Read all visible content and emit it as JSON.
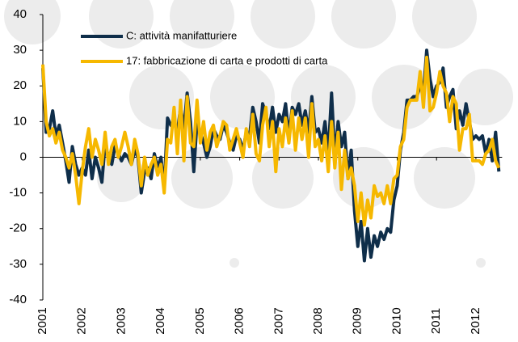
{
  "chart_data": {
    "type": "line",
    "categories": [
      "2001",
      null,
      null,
      null,
      null,
      null,
      null,
      null,
      null,
      null,
      null,
      null,
      "2002",
      null,
      null,
      null,
      null,
      null,
      null,
      null,
      null,
      null,
      null,
      null,
      "2003",
      null,
      null,
      null,
      null,
      null,
      null,
      null,
      null,
      null,
      null,
      null,
      "2004",
      null,
      null,
      null,
      null,
      null,
      null,
      null,
      null,
      null,
      null,
      null,
      "2005",
      null,
      null,
      null,
      null,
      null,
      null,
      null,
      null,
      null,
      null,
      null,
      "2006",
      null,
      null,
      null,
      null,
      null,
      null,
      null,
      null,
      null,
      null,
      null,
      "2007",
      null,
      null,
      null,
      null,
      null,
      null,
      null,
      null,
      null,
      null,
      null,
      "2008",
      null,
      null,
      null,
      null,
      null,
      null,
      null,
      null,
      null,
      null,
      null,
      "2009",
      null,
      null,
      null,
      null,
      null,
      null,
      null,
      null,
      null,
      null,
      null,
      "2010",
      null,
      null,
      null,
      null,
      null,
      null,
      null,
      null,
      null,
      null,
      null,
      "2011",
      null,
      null,
      null,
      null,
      null,
      null,
      null,
      null,
      null,
      null,
      null,
      "2012",
      null,
      null,
      null,
      null,
      null,
      null,
      null
    ],
    "series": [
      {
        "name": "C: attività manifatturiere",
        "color": "#0f2e4a",
        "values": [
          25,
          7,
          8,
          13,
          6,
          9,
          4,
          -1,
          -7,
          3,
          -2,
          -5,
          -3,
          -5,
          2,
          -6,
          0,
          -3,
          -7,
          4,
          0,
          -2,
          3,
          1,
          -1,
          1,
          0,
          -2,
          2,
          0,
          -10,
          -4,
          -3,
          -6,
          1,
          -3,
          0,
          -9,
          11,
          9,
          10,
          7,
          14,
          8,
          18,
          10,
          -4,
          10,
          7,
          4,
          0,
          3,
          8,
          6,
          5,
          9,
          7,
          4,
          2,
          6,
          5,
          2,
          7,
          6,
          14,
          10,
          4,
          15,
          12,
          8,
          14,
          7,
          12,
          10,
          15,
          6,
          14,
          12,
          15,
          9,
          13,
          7,
          17,
          7,
          8,
          4,
          10,
          1,
          18,
          0,
          10,
          3,
          7,
          -6,
          2,
          -15,
          -25,
          -18,
          -29,
          -20,
          -28,
          -22,
          -25,
          -21,
          -23,
          -20,
          -21,
          -12,
          -8,
          2,
          7,
          16,
          16,
          17,
          17,
          20,
          18,
          30,
          22,
          17,
          20,
          21,
          25,
          14,
          17,
          19,
          8,
          13,
          9,
          15,
          10,
          5,
          6,
          5,
          6,
          1,
          5,
          -1,
          7,
          -4
        ]
      },
      {
        "name": "17: fabbricazione di carta e prodotti di carta",
        "color": "#f6b800",
        "values": [
          26,
          10,
          6,
          8,
          4,
          7,
          2,
          0,
          -3,
          1,
          -5,
          -13,
          -4,
          3,
          8,
          0,
          5,
          2,
          -2,
          7,
          -2,
          3,
          5,
          0,
          3,
          7,
          3,
          -2,
          5,
          1,
          -8,
          0,
          -5,
          -2,
          0,
          -5,
          -2,
          -10,
          5,
          4,
          14,
          1,
          16,
          -1,
          17,
          4,
          3,
          16,
          4,
          10,
          2,
          7,
          9,
          3,
          6,
          10,
          9,
          2,
          5,
          8,
          4,
          0,
          8,
          3,
          12,
          1,
          -1,
          9,
          14,
          3,
          10,
          -4,
          8,
          3,
          11,
          4,
          13,
          2,
          11,
          5,
          11,
          0,
          15,
          3,
          5,
          -1,
          6,
          -4,
          10,
          -3,
          7,
          -9,
          2,
          -6,
          -3,
          -8,
          -18,
          -10,
          -19,
          -12,
          -17,
          -8,
          -11,
          -10,
          -13,
          -8,
          -13,
          -6,
          -5,
          3,
          5,
          14,
          16,
          16,
          16,
          24,
          14,
          28,
          13,
          14,
          18,
          24,
          20,
          18,
          10,
          17,
          15,
          2,
          8,
          8,
          12,
          -1,
          -1,
          -1,
          -2,
          1,
          2,
          5,
          -1,
          -3
        ]
      }
    ],
    "ylim": [
      -40,
      40
    ],
    "yticks": [
      -40,
      -30,
      -20,
      -10,
      0,
      10,
      20,
      30,
      40
    ]
  }
}
